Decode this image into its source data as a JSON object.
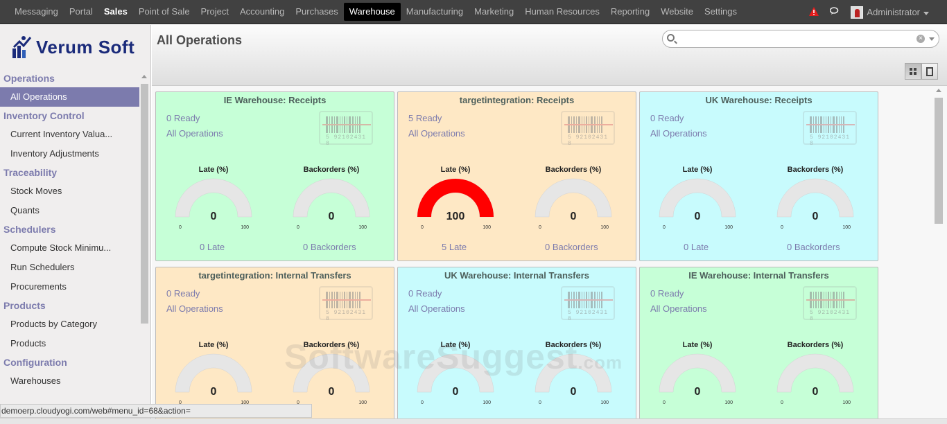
{
  "topnav": {
    "items": [
      {
        "label": "Messaging",
        "style": "normal"
      },
      {
        "label": "Portal",
        "style": "normal"
      },
      {
        "label": "Sales",
        "style": "bold"
      },
      {
        "label": "Point of Sale",
        "style": "normal"
      },
      {
        "label": "Project",
        "style": "normal"
      },
      {
        "label": "Accounting",
        "style": "normal"
      },
      {
        "label": "Purchases",
        "style": "normal"
      },
      {
        "label": "Warehouse",
        "style": "active"
      },
      {
        "label": "Manufacturing",
        "style": "normal"
      },
      {
        "label": "Marketing",
        "style": "normal"
      },
      {
        "label": "Human Resources",
        "style": "normal"
      },
      {
        "label": "Reporting",
        "style": "normal"
      },
      {
        "label": "Website",
        "style": "normal"
      },
      {
        "label": "Settings",
        "style": "normal"
      }
    ],
    "user": "Administrator",
    "icons": [
      "alert-icon",
      "chat-icon",
      "avatar",
      "caret-down-icon"
    ]
  },
  "sidebar": {
    "logo_text": "Verum Soft",
    "sections": [
      {
        "title": "Operations",
        "items": [
          {
            "label": "All Operations",
            "active": true
          }
        ]
      },
      {
        "title": "Inventory Control",
        "items": [
          {
            "label": "Current Inventory Valua..."
          },
          {
            "label": "Inventory Adjustments"
          }
        ]
      },
      {
        "title": "Traceability",
        "items": [
          {
            "label": "Stock Moves"
          },
          {
            "label": "Quants"
          }
        ]
      },
      {
        "title": "Schedulers",
        "items": [
          {
            "label": "Compute Stock Minimu..."
          },
          {
            "label": "Run Schedulers"
          },
          {
            "label": "Procurements"
          }
        ]
      },
      {
        "title": "Products",
        "items": [
          {
            "label": "Products by Category"
          },
          {
            "label": "Products"
          }
        ]
      },
      {
        "title": "Configuration",
        "items": [
          {
            "label": "Warehouses"
          }
        ]
      }
    ]
  },
  "main": {
    "title": "All Operations",
    "search": {
      "value": "",
      "placeholder": ""
    },
    "late_label": "Late (%)",
    "backorders_label": "Backorders (%)",
    "gauge_min": "0",
    "gauge_max": "100",
    "cards": [
      {
        "title": "IE Warehouse: Receipts",
        "color": "green",
        "ready": "0 Ready",
        "all_ops": "All Operations",
        "late_pct": 0,
        "late_pct_text": "0",
        "back_pct": 0,
        "back_pct_text": "0",
        "late_text": "0 Late",
        "back_text": "0 Backorders",
        "barcode_accent": "#e08080"
      },
      {
        "title": "targetintegration: Receipts",
        "color": "orange",
        "ready": "5 Ready",
        "all_ops": "All Operations",
        "late_pct": 100,
        "late_pct_text": "100",
        "back_pct": 0,
        "back_pct_text": "0",
        "late_text": "5 Late",
        "back_text": "0 Backorders",
        "barcode_accent": "#e08080"
      },
      {
        "title": "UK Warehouse: Receipts",
        "color": "cyan",
        "ready": "0 Ready",
        "all_ops": "All Operations",
        "late_pct": 0,
        "late_pct_text": "0",
        "back_pct": 0,
        "back_pct_text": "0",
        "late_text": "0 Late",
        "back_text": "0 Backorders",
        "barcode_accent": "#e08080"
      },
      {
        "title": "targetintegration: Internal Transfers",
        "color": "orange",
        "ready": "0 Ready",
        "all_ops": "All Operations",
        "late_pct": 0,
        "late_pct_text": "0",
        "back_pct": 0,
        "back_pct_text": "0",
        "late_text": "",
        "back_text": "",
        "barcode_accent": "#e08080"
      },
      {
        "title": "UK Warehouse: Internal Transfers",
        "color": "cyan",
        "ready": "0 Ready",
        "all_ops": "All Operations",
        "late_pct": 0,
        "late_pct_text": "0",
        "back_pct": 0,
        "back_pct_text": "0",
        "late_text": "",
        "back_text": "",
        "barcode_accent": "#e08080"
      },
      {
        "title": "IE Warehouse: Internal Transfers",
        "color": "green",
        "ready": "0 Ready",
        "all_ops": "All Operations",
        "late_pct": 0,
        "late_pct_text": "0",
        "back_pct": 0,
        "back_pct_text": "0",
        "late_text": "",
        "back_text": "",
        "barcode_accent": "#e08080"
      }
    ],
    "barcode_code": "5 92102431 8"
  },
  "watermark": {
    "main": "SoftwareSuggest",
    "suffix": ".com"
  },
  "statusbar": {
    "url": "demoerp.cloudyogi.com/web#menu_id=68&action="
  },
  "colors": {
    "topnav_bg": "#414141",
    "accent": "#7c7bad",
    "gauge_fill": "#ff0000",
    "gauge_empty": "#e6e6e6"
  }
}
